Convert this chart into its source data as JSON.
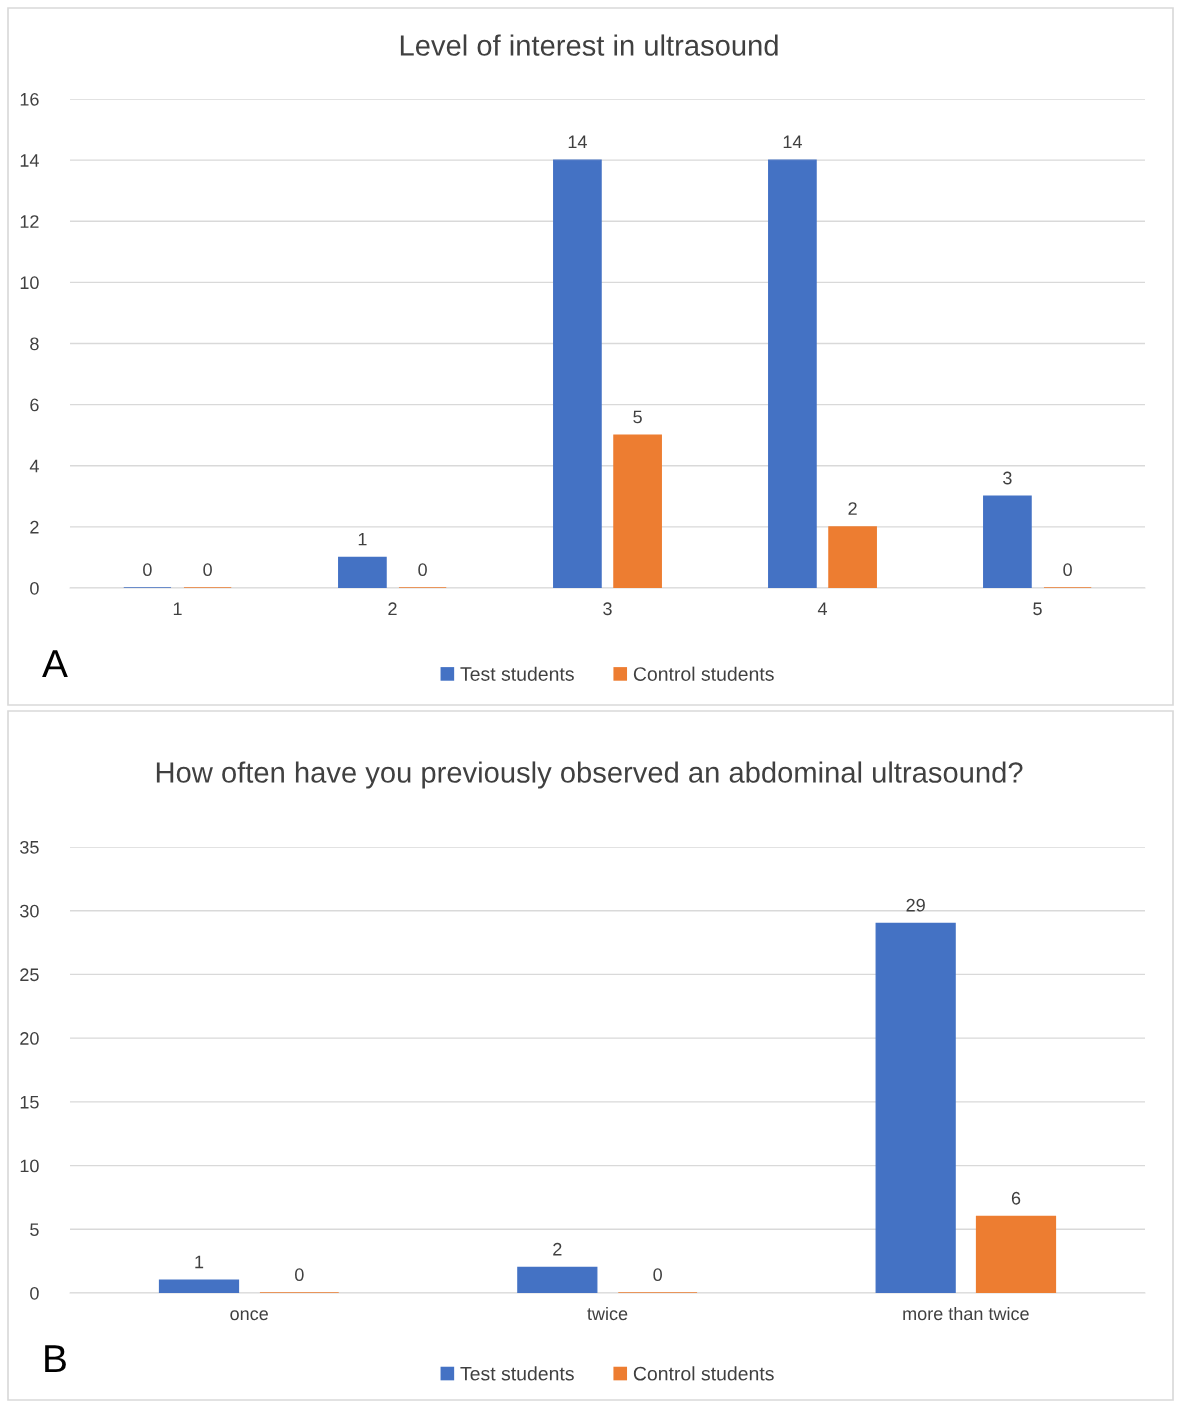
{
  "chart_data": [
    {
      "type": "bar",
      "title": "Level of interest in ultrasound",
      "categories": [
        "1",
        "2",
        "3",
        "4",
        "5"
      ],
      "series": [
        {
          "name": "Test students",
          "color": "#4472c4",
          "values": [
            0,
            1,
            14,
            14,
            3
          ]
        },
        {
          "name": "Control students",
          "color": "#ed7d31",
          "values": [
            0,
            0,
            5,
            2,
            0
          ]
        }
      ],
      "ylim": [
        0,
        16
      ],
      "yticks": [
        0,
        2,
        4,
        6,
        8,
        10,
        12,
        14,
        16
      ],
      "grid": "y",
      "legend": "bottom",
      "data_labels": true,
      "annotations": [
        "A"
      ]
    },
    {
      "type": "bar",
      "title": "How often have you previously observed an abdominal ultrasound?",
      "categories": [
        "once",
        "twice",
        "more than twice"
      ],
      "series": [
        {
          "name": "Test students",
          "color": "#4472c4",
          "values": [
            1,
            2,
            29
          ]
        },
        {
          "name": "Control students",
          "color": "#ed7d31",
          "values": [
            0,
            0,
            6
          ]
        }
      ],
      "ylim": [
        0,
        35
      ],
      "yticks": [
        0,
        5,
        10,
        15,
        20,
        25,
        30,
        35
      ],
      "grid": "y",
      "legend": "bottom",
      "data_labels": true,
      "annotations": [
        "B"
      ]
    }
  ]
}
